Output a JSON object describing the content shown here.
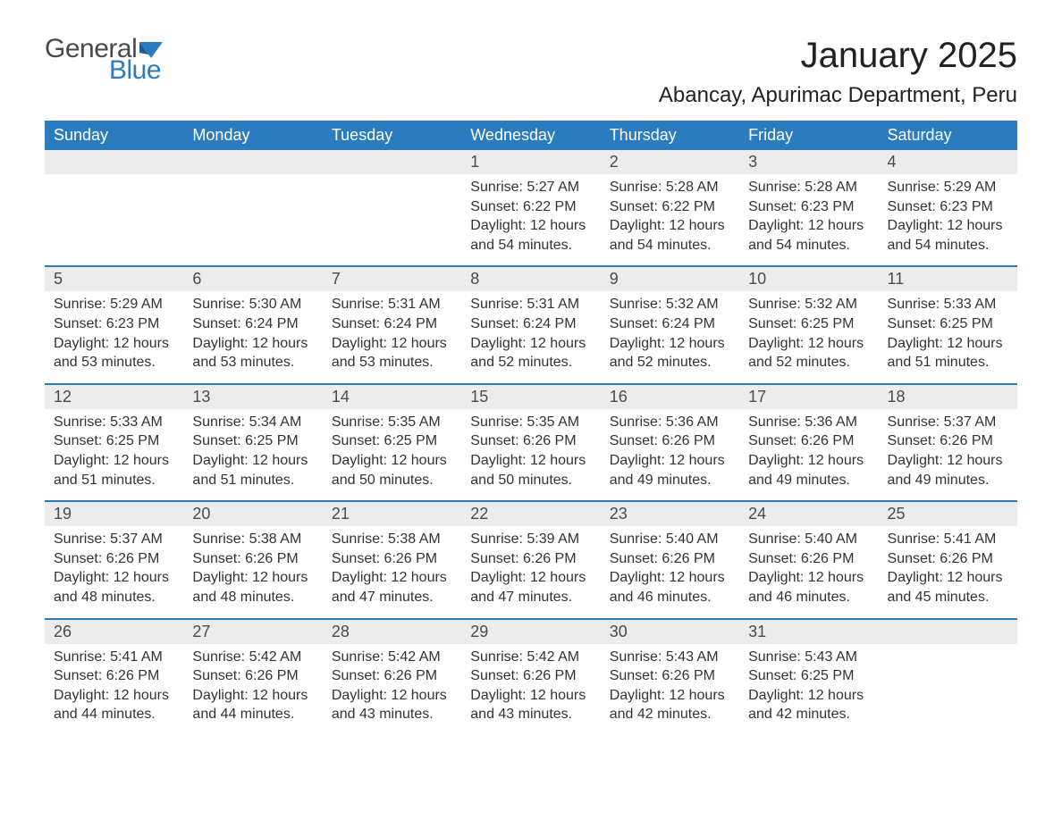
{
  "logo": {
    "general": "General",
    "blue": "Blue",
    "flag_color": "#2b7bbf"
  },
  "title": "January 2025",
  "location": "Abancay, Apurimac Department, Peru",
  "colors": {
    "header_bg": "#2b7bbf",
    "header_text": "#ffffff",
    "daynum_bg": "#ececec",
    "row_border": "#2b7bbf",
    "body_text": "#333333",
    "title_text": "#222222"
  },
  "day_headers": [
    "Sunday",
    "Monday",
    "Tuesday",
    "Wednesday",
    "Thursday",
    "Friday",
    "Saturday"
  ],
  "weeks": [
    [
      {
        "day": "",
        "sunrise": "",
        "sunset": "",
        "daylight": ""
      },
      {
        "day": "",
        "sunrise": "",
        "sunset": "",
        "daylight": ""
      },
      {
        "day": "",
        "sunrise": "",
        "sunset": "",
        "daylight": ""
      },
      {
        "day": "1",
        "sunrise": "Sunrise: 5:27 AM",
        "sunset": "Sunset: 6:22 PM",
        "daylight": "Daylight: 12 hours and 54 minutes."
      },
      {
        "day": "2",
        "sunrise": "Sunrise: 5:28 AM",
        "sunset": "Sunset: 6:22 PM",
        "daylight": "Daylight: 12 hours and 54 minutes."
      },
      {
        "day": "3",
        "sunrise": "Sunrise: 5:28 AM",
        "sunset": "Sunset: 6:23 PM",
        "daylight": "Daylight: 12 hours and 54 minutes."
      },
      {
        "day": "4",
        "sunrise": "Sunrise: 5:29 AM",
        "sunset": "Sunset: 6:23 PM",
        "daylight": "Daylight: 12 hours and 54 minutes."
      }
    ],
    [
      {
        "day": "5",
        "sunrise": "Sunrise: 5:29 AM",
        "sunset": "Sunset: 6:23 PM",
        "daylight": "Daylight: 12 hours and 53 minutes."
      },
      {
        "day": "6",
        "sunrise": "Sunrise: 5:30 AM",
        "sunset": "Sunset: 6:24 PM",
        "daylight": "Daylight: 12 hours and 53 minutes."
      },
      {
        "day": "7",
        "sunrise": "Sunrise: 5:31 AM",
        "sunset": "Sunset: 6:24 PM",
        "daylight": "Daylight: 12 hours and 53 minutes."
      },
      {
        "day": "8",
        "sunrise": "Sunrise: 5:31 AM",
        "sunset": "Sunset: 6:24 PM",
        "daylight": "Daylight: 12 hours and 52 minutes."
      },
      {
        "day": "9",
        "sunrise": "Sunrise: 5:32 AM",
        "sunset": "Sunset: 6:24 PM",
        "daylight": "Daylight: 12 hours and 52 minutes."
      },
      {
        "day": "10",
        "sunrise": "Sunrise: 5:32 AM",
        "sunset": "Sunset: 6:25 PM",
        "daylight": "Daylight: 12 hours and 52 minutes."
      },
      {
        "day": "11",
        "sunrise": "Sunrise: 5:33 AM",
        "sunset": "Sunset: 6:25 PM",
        "daylight": "Daylight: 12 hours and 51 minutes."
      }
    ],
    [
      {
        "day": "12",
        "sunrise": "Sunrise: 5:33 AM",
        "sunset": "Sunset: 6:25 PM",
        "daylight": "Daylight: 12 hours and 51 minutes."
      },
      {
        "day": "13",
        "sunrise": "Sunrise: 5:34 AM",
        "sunset": "Sunset: 6:25 PM",
        "daylight": "Daylight: 12 hours and 51 minutes."
      },
      {
        "day": "14",
        "sunrise": "Sunrise: 5:35 AM",
        "sunset": "Sunset: 6:25 PM",
        "daylight": "Daylight: 12 hours and 50 minutes."
      },
      {
        "day": "15",
        "sunrise": "Sunrise: 5:35 AM",
        "sunset": "Sunset: 6:26 PM",
        "daylight": "Daylight: 12 hours and 50 minutes."
      },
      {
        "day": "16",
        "sunrise": "Sunrise: 5:36 AM",
        "sunset": "Sunset: 6:26 PM",
        "daylight": "Daylight: 12 hours and 49 minutes."
      },
      {
        "day": "17",
        "sunrise": "Sunrise: 5:36 AM",
        "sunset": "Sunset: 6:26 PM",
        "daylight": "Daylight: 12 hours and 49 minutes."
      },
      {
        "day": "18",
        "sunrise": "Sunrise: 5:37 AM",
        "sunset": "Sunset: 6:26 PM",
        "daylight": "Daylight: 12 hours and 49 minutes."
      }
    ],
    [
      {
        "day": "19",
        "sunrise": "Sunrise: 5:37 AM",
        "sunset": "Sunset: 6:26 PM",
        "daylight": "Daylight: 12 hours and 48 minutes."
      },
      {
        "day": "20",
        "sunrise": "Sunrise: 5:38 AM",
        "sunset": "Sunset: 6:26 PM",
        "daylight": "Daylight: 12 hours and 48 minutes."
      },
      {
        "day": "21",
        "sunrise": "Sunrise: 5:38 AM",
        "sunset": "Sunset: 6:26 PM",
        "daylight": "Daylight: 12 hours and 47 minutes."
      },
      {
        "day": "22",
        "sunrise": "Sunrise: 5:39 AM",
        "sunset": "Sunset: 6:26 PM",
        "daylight": "Daylight: 12 hours and 47 minutes."
      },
      {
        "day": "23",
        "sunrise": "Sunrise: 5:40 AM",
        "sunset": "Sunset: 6:26 PM",
        "daylight": "Daylight: 12 hours and 46 minutes."
      },
      {
        "day": "24",
        "sunrise": "Sunrise: 5:40 AM",
        "sunset": "Sunset: 6:26 PM",
        "daylight": "Daylight: 12 hours and 46 minutes."
      },
      {
        "day": "25",
        "sunrise": "Sunrise: 5:41 AM",
        "sunset": "Sunset: 6:26 PM",
        "daylight": "Daylight: 12 hours and 45 minutes."
      }
    ],
    [
      {
        "day": "26",
        "sunrise": "Sunrise: 5:41 AM",
        "sunset": "Sunset: 6:26 PM",
        "daylight": "Daylight: 12 hours and 44 minutes."
      },
      {
        "day": "27",
        "sunrise": "Sunrise: 5:42 AM",
        "sunset": "Sunset: 6:26 PM",
        "daylight": "Daylight: 12 hours and 44 minutes."
      },
      {
        "day": "28",
        "sunrise": "Sunrise: 5:42 AM",
        "sunset": "Sunset: 6:26 PM",
        "daylight": "Daylight: 12 hours and 43 minutes."
      },
      {
        "day": "29",
        "sunrise": "Sunrise: 5:42 AM",
        "sunset": "Sunset: 6:26 PM",
        "daylight": "Daylight: 12 hours and 43 minutes."
      },
      {
        "day": "30",
        "sunrise": "Sunrise: 5:43 AM",
        "sunset": "Sunset: 6:26 PM",
        "daylight": "Daylight: 12 hours and 42 minutes."
      },
      {
        "day": "31",
        "sunrise": "Sunrise: 5:43 AM",
        "sunset": "Sunset: 6:25 PM",
        "daylight": "Daylight: 12 hours and 42 minutes."
      },
      {
        "day": "",
        "sunrise": "",
        "sunset": "",
        "daylight": ""
      }
    ]
  ]
}
